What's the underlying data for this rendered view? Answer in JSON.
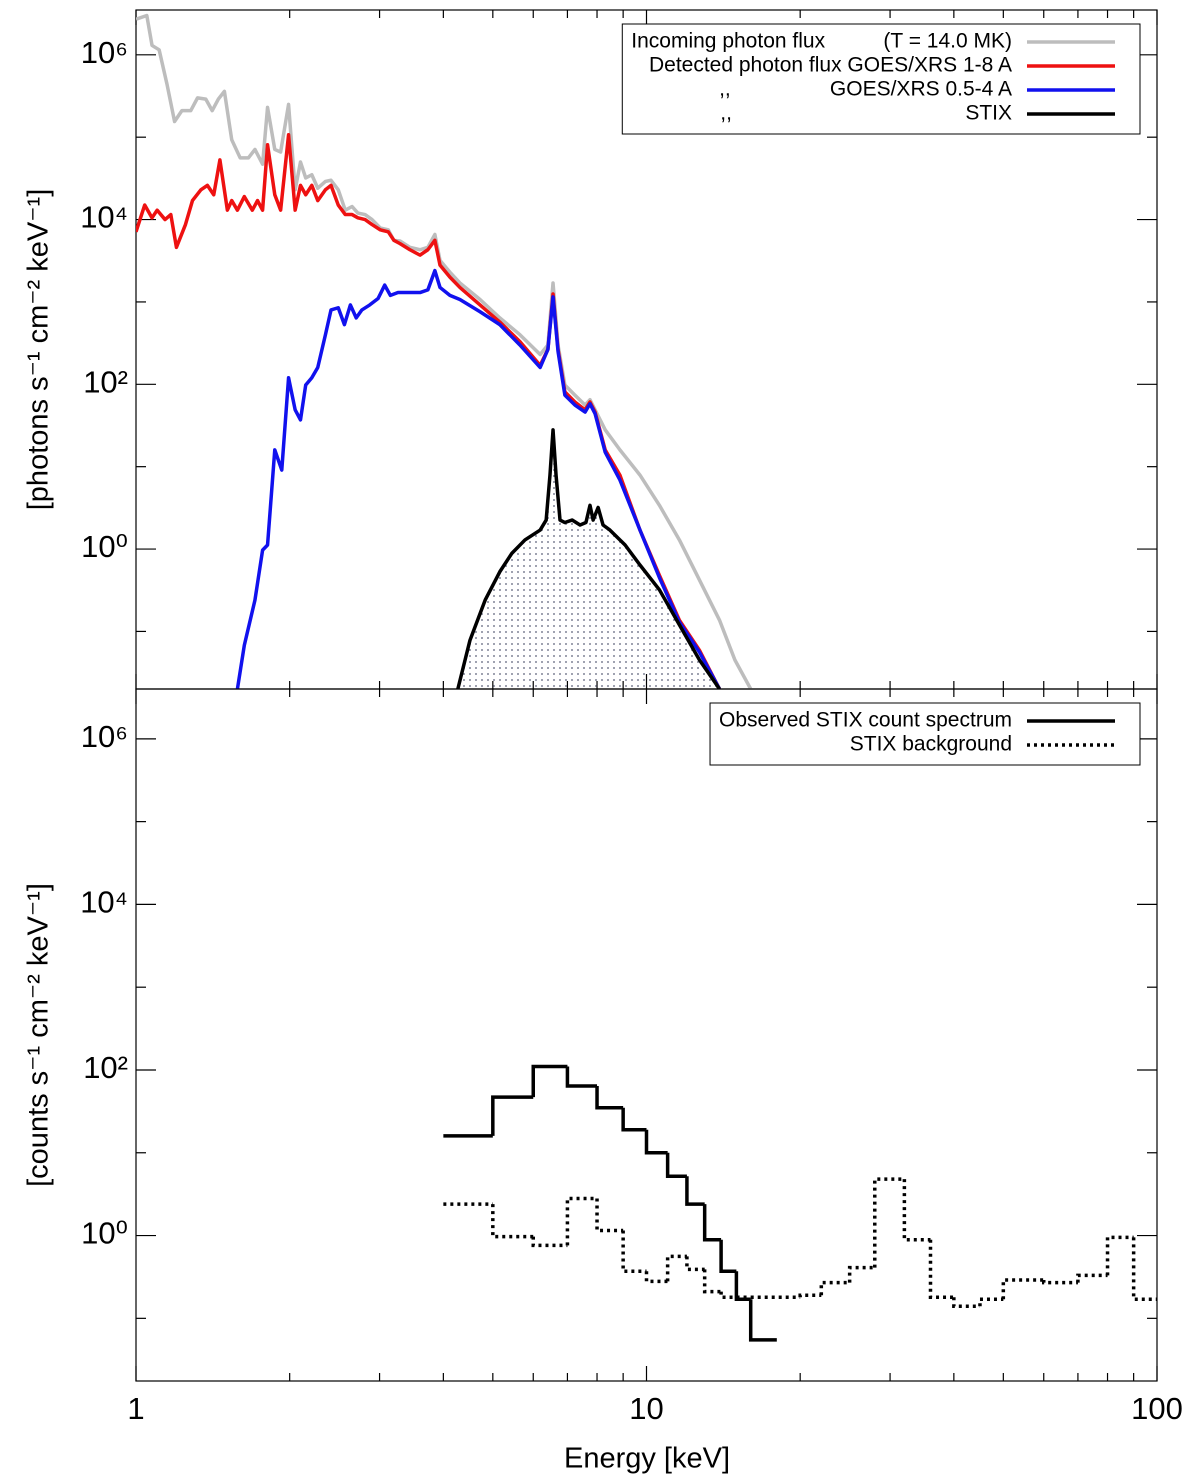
{
  "chart_data": [
    {
      "type": "line",
      "xlog": true,
      "ylog": true,
      "legend": "upper right",
      "ylabel": "[photons s⁻¹ cm⁻² keV⁻¹]",
      "xlim": [
        1,
        100
      ],
      "ylim": [
        0.02,
        3500000
      ],
      "yticks": [
        {
          "value": 1,
          "label": "10⁰"
        },
        {
          "value": 100,
          "label": "10²"
        },
        {
          "value": 10000,
          "label": "10⁴"
        },
        {
          "value": 1000000,
          "label": "10⁶"
        }
      ],
      "yticks_minor": [
        0.1,
        10,
        1000,
        100000
      ],
      "series": [
        {
          "name": "Incoming photon flux          (T = 14.0 MK)",
          "color": "#bdbdbd",
          "x": [
            1.0,
            1.05,
            1.075,
            1.11,
            1.15,
            1.19,
            1.23,
            1.28,
            1.32,
            1.37,
            1.41,
            1.45,
            1.49,
            1.54,
            1.6,
            1.66,
            1.71,
            1.77,
            1.81,
            1.87,
            1.92,
            1.99,
            2.05,
            2.1,
            2.15,
            2.21,
            2.27,
            2.35,
            2.41,
            2.49,
            2.57,
            2.65,
            2.72,
            2.81,
            2.9,
            3.01,
            3.12,
            3.2,
            3.29,
            3.44,
            3.6,
            3.73,
            3.85,
            3.94,
            4.12,
            4.31,
            4.72,
            5.16,
            5.65,
            6.19,
            6.41,
            6.56,
            6.71,
            6.92,
            7.24,
            7.58,
            7.75,
            7.93,
            8.3,
            8.87,
            9.71,
            10.6,
            11.6,
            12.7,
            13.9,
            14.9,
            16.0
          ],
          "values": [
            2700000,
            3000000,
            1300000,
            1150000,
            440000,
            155000,
            210000,
            210000,
            300000,
            290000,
            210000,
            290000,
            360000,
            93000,
            56000,
            56000,
            71000,
            47000,
            230000,
            71000,
            66000,
            250000,
            23000,
            50000,
            32000,
            35000,
            24000,
            29000,
            30000,
            23000,
            13000,
            14400,
            12000,
            11500,
            10000,
            7900,
            7500,
            5600,
            5500,
            4600,
            4300,
            4600,
            6600,
            3200,
            2300,
            1700,
            1070,
            640,
            400,
            230,
            300,
            1700,
            300,
            98,
            74,
            56,
            65,
            49,
            28,
            16,
            7.9,
            3.4,
            1.29,
            0.42,
            0.137,
            0.045,
            0.02
          ]
        },
        {
          "name": "Detected photon flux GOES/XRS 1-8 A",
          "color": "#ee1111",
          "x": [
            1.0,
            1.04,
            1.075,
            1.1,
            1.14,
            1.17,
            1.2,
            1.25,
            1.29,
            1.34,
            1.38,
            1.42,
            1.46,
            1.51,
            1.54,
            1.58,
            1.63,
            1.69,
            1.73,
            1.77,
            1.81,
            1.87,
            1.92,
            1.99,
            2.05,
            2.1,
            2.15,
            2.21,
            2.27,
            2.35,
            2.41,
            2.49,
            2.57,
            2.65,
            2.72,
            2.81,
            2.9,
            3.01,
            3.12,
            3.2,
            3.29,
            3.44,
            3.6,
            3.73,
            3.85,
            3.94,
            4.12,
            4.31,
            4.72,
            5.16,
            5.65,
            6.19,
            6.41,
            6.56,
            6.71,
            6.92,
            7.24,
            7.58,
            7.75,
            7.93,
            8.3,
            8.87,
            9.71,
            10.6,
            11.6,
            12.7,
            13.9
          ],
          "values": [
            7100,
            15000,
            10500,
            13000,
            10000,
            11500,
            4600,
            8700,
            17000,
            23000,
            26000,
            20000,
            53000,
            13000,
            17000,
            13000,
            19000,
            13000,
            17000,
            13000,
            81000,
            20000,
            13000,
            107000,
            13000,
            26000,
            20000,
            26000,
            17000,
            23000,
            26000,
            15000,
            11500,
            11500,
            10500,
            10000,
            8700,
            7500,
            7100,
            5600,
            5100,
            4300,
            3700,
            4300,
            5600,
            2800,
            2000,
            1500,
            920,
            570,
            330,
            170,
            265,
            1250,
            265,
            81,
            61,
            49,
            61,
            46,
            16,
            7.9,
            1.7,
            0.48,
            0.137,
            0.059,
            0.02
          ]
        },
        {
          "name": ",,                 GOES/XRS 0.5-4 A",
          "color": "#1111ee",
          "x": [
            1.58,
            1.63,
            1.71,
            1.77,
            1.81,
            1.87,
            1.93,
            1.99,
            2.05,
            2.1,
            2.15,
            2.21,
            2.27,
            2.35,
            2.41,
            2.49,
            2.56,
            2.63,
            2.7,
            2.77,
            2.87,
            2.98,
            3.07,
            3.15,
            3.26,
            3.44,
            3.6,
            3.73,
            3.85,
            3.94,
            4.12,
            4.31,
            4.72,
            5.16,
            5.65,
            6.19,
            6.41,
            6.56,
            6.71,
            6.92,
            7.24,
            7.58,
            7.75,
            7.93,
            8.3,
            8.87,
            9.71,
            10.6,
            11.6,
            12.7,
            13.9
          ],
          "values": [
            0.02,
            0.068,
            0.24,
            0.97,
            1.12,
            16,
            9.1,
            120,
            49,
            37,
            98,
            120,
            160,
            400,
            800,
            850,
            530,
            920,
            640,
            800,
            920,
            1100,
            1600,
            1200,
            1300,
            1300,
            1300,
            1400,
            2400,
            1500,
            1200,
            1070,
            760,
            530,
            300,
            160,
            265,
            1150,
            250,
            74,
            56,
            46,
            58,
            44,
            15,
            6.9,
            1.7,
            0.45,
            0.13,
            0.056,
            0.02
          ]
        },
        {
          "name": ",,                                        STIX",
          "color": "#000000",
          "fill": "dotted",
          "x": [
            4.27,
            4.51,
            4.83,
            5.16,
            5.45,
            5.78,
            6.19,
            6.36,
            6.47,
            6.56,
            6.65,
            6.77,
            6.92,
            7.15,
            7.41,
            7.61,
            7.75,
            7.86,
            8.04,
            8.22,
            8.48,
            9.08,
            9.71,
            10.6,
            11.6,
            12.7,
            13.9
          ],
          "values": [
            0.02,
            0.078,
            0.24,
            0.53,
            0.89,
            1.29,
            1.7,
            2.25,
            7.9,
            28,
            7.9,
            2.25,
            2.1,
            2.25,
            1.96,
            2.1,
            3.4,
            2.25,
            3.2,
            1.96,
            1.7,
            1.12,
            0.64,
            0.32,
            0.12,
            0.045,
            0.02
          ]
        }
      ]
    },
    {
      "type": "histogram",
      "xlog": true,
      "ylog": true,
      "legend": "upper right",
      "xlabel": "Energy [keV]",
      "ylabel": "[counts s⁻¹ cm⁻² keV⁻¹]",
      "xlim": [
        1,
        100
      ],
      "ylim": [
        0.0175,
        4000000
      ],
      "xticks": [
        1,
        10,
        100
      ],
      "xticks_minor": [
        2,
        3,
        4,
        5,
        6,
        7,
        8,
        9,
        20,
        30,
        40,
        50,
        60,
        70,
        80,
        90
      ],
      "yticks": [
        {
          "value": 1,
          "label": "10⁰"
        },
        {
          "value": 100,
          "label": "10²"
        },
        {
          "value": 10000,
          "label": "10⁴"
        },
        {
          "value": 1000000,
          "label": "10⁶"
        }
      ],
      "yticks_minor": [
        0.1,
        10,
        1000,
        100000
      ],
      "series": [
        {
          "name": "Observed STIX count spectrum",
          "color": "#000000",
          "dash": "solid",
          "bins": [
            4,
            5,
            6,
            7,
            8,
            9,
            10,
            11,
            12,
            13,
            14,
            15,
            16,
            18
          ],
          "values": [
            16,
            47,
            110,
            64,
            35,
            19,
            10,
            5.2,
            2.4,
            0.89,
            0.37,
            0.17,
            0.055
          ]
        },
        {
          "name": "STIX background",
          "color": "#000000",
          "dash": "dotted",
          "bins": [
            4,
            5,
            6,
            7,
            8,
            9,
            10,
            11,
            12,
            13,
            14,
            16,
            20,
            22,
            25,
            28,
            32,
            36,
            40,
            45,
            50,
            60,
            70,
            80,
            90,
            100
          ],
          "values": [
            2.4,
            0.97,
            0.76,
            2.8,
            1.15,
            0.37,
            0.28,
            0.56,
            0.39,
            0.21,
            0.18,
            0.18,
            0.19,
            0.27,
            0.41,
            4.8,
            0.89,
            0.18,
            0.14,
            0.17,
            0.29,
            0.27,
            0.33,
            0.95,
            0.17
          ]
        }
      ]
    }
  ]
}
